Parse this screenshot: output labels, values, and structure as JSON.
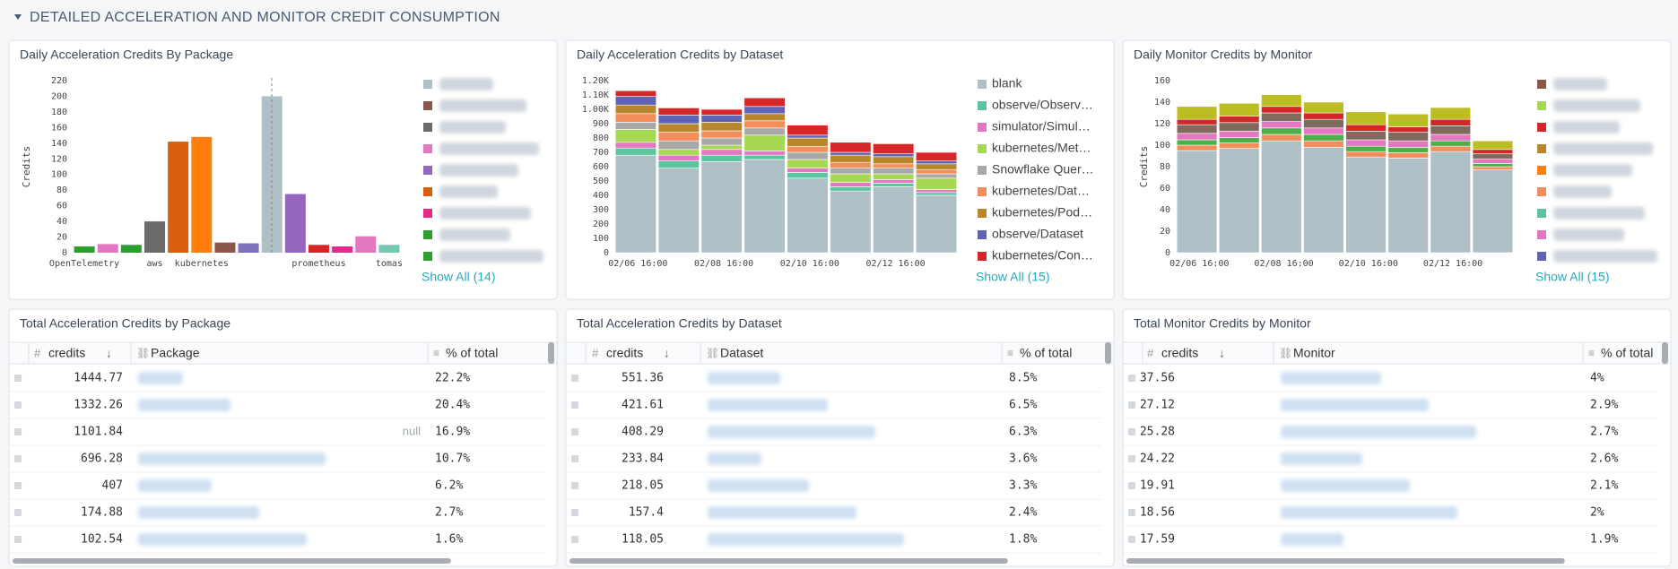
{
  "section_title": "DETAILED ACCELERATION AND MONITOR CREDIT CONSUMPTION",
  "chart_data": [
    {
      "type": "bar",
      "title": "Daily Acceleration Credits By Package",
      "y_label": "Credits",
      "categories": [
        "OpenTelemetry",
        null,
        null,
        "aws",
        null,
        "kubernetes",
        null,
        null,
        null,
        null,
        "prometheus",
        null,
        null,
        "tomas"
      ],
      "values": [
        8,
        11,
        10,
        40,
        142,
        148,
        13,
        12,
        200,
        75,
        10,
        8,
        21,
        10
      ],
      "colors": [
        "#2ca02c",
        "#e377c2",
        "#2ca02c",
        "#6b6b6b",
        "#d95f0e",
        "#ff7f0e",
        "#8c564b",
        "#7f6fbf",
        "#aebfc6",
        "#9467bd",
        "#d62728",
        "#e7298a",
        "#e377c2",
        "#76c7b0"
      ],
      "legend_colors": [
        "#aebfc6",
        "#8c564b",
        "#6b6b6b",
        "#e377c2",
        "#9467bd",
        "#d95f0e",
        "#e7298a",
        "#2ca02c",
        "#2ca02c"
      ],
      "ylim": [
        0,
        220
      ],
      "yticks": [
        0,
        20,
        40,
        60,
        80,
        100,
        120,
        140,
        160,
        180,
        200,
        220
      ],
      "grid": false,
      "show_all": "Show All (14)"
    },
    {
      "type": "stacked_bar",
      "title": "Daily Acceleration Credits by Dataset",
      "categories": [
        "02/06 16:00",
        null,
        "02/08 16:00",
        null,
        "02/10 16:00",
        null,
        "02/12 16:00",
        null
      ],
      "series": [
        {
          "name": "blank",
          "color": "#aebfc6",
          "values": [
            680,
            590,
            635,
            650,
            520,
            430,
            460,
            400
          ]
        },
        {
          "name": "observe/Observ…",
          "color": "#5cc5a0",
          "values": [
            50,
            50,
            45,
            30,
            40,
            30,
            25,
            20
          ]
        },
        {
          "name": "simulator/Simul…",
          "color": "#e377c2",
          "values": [
            40,
            40,
            40,
            30,
            30,
            30,
            25,
            20
          ]
        },
        {
          "name": "kubernetes/Met…",
          "color": "#a6d854",
          "values": [
            90,
            40,
            30,
            110,
            60,
            60,
            40,
            80
          ]
        },
        {
          "name": "Snowflake Quer…",
          "color": "#a8a8a8",
          "values": [
            50,
            60,
            50,
            50,
            50,
            40,
            40,
            30
          ]
        },
        {
          "name": "kubernetes/Dat…",
          "color": "#f28e5b",
          "values": [
            60,
            60,
            50,
            50,
            40,
            40,
            30,
            30
          ]
        },
        {
          "name": "kubernetes/Pod…",
          "color": "#b8862b",
          "values": [
            60,
            60,
            60,
            50,
            60,
            50,
            50,
            40
          ]
        },
        {
          "name": "observe/Dataset",
          "color": "#5e63b6",
          "values": [
            60,
            60,
            50,
            50,
            20,
            20,
            20,
            20
          ]
        },
        {
          "name": "kubernetes/Con…",
          "color": "#d62728",
          "values": [
            40,
            50,
            40,
            60,
            70,
            70,
            70,
            60
          ]
        }
      ],
      "ylim": [
        0,
        1200
      ],
      "yticks": [
        0,
        100,
        200,
        300,
        400,
        500,
        600,
        700,
        800,
        900,
        {
          "value": 1000,
          "label": "1.00K"
        },
        {
          "value": 1100,
          "label": "1.10K"
        },
        {
          "value": 1200,
          "label": "1.20K"
        }
      ],
      "grid": false,
      "show_all": "Show All (15)"
    },
    {
      "type": "stacked_bar",
      "title": "Daily Monitor Credits by Monitor",
      "y_label": "Credits",
      "categories": [
        "02/06 16:00",
        null,
        "02/08 16:00",
        null,
        "02/10 16:00",
        null,
        "02/12 16:00",
        null
      ],
      "series": [
        {
          "color": "#aebfc6",
          "values": [
            95,
            97,
            104,
            98,
            89,
            88,
            94,
            77
          ]
        },
        {
          "color": "#f28e5b",
          "values": [
            5,
            5,
            6,
            6,
            5,
            5,
            5,
            3
          ]
        },
        {
          "color": "#4daf4a",
          "values": [
            5,
            5,
            6,
            6,
            5,
            5,
            5,
            3
          ]
        },
        {
          "color": "#e377c2",
          "values": [
            6,
            6,
            6,
            6,
            6,
            6,
            6,
            4
          ]
        },
        {
          "color": "#7f6a5e",
          "values": [
            8,
            8,
            8,
            8,
            8,
            8,
            8,
            5
          ]
        },
        {
          "color": "#d62728",
          "values": [
            5,
            6,
            6,
            6,
            6,
            5,
            6,
            4
          ]
        },
        {
          "color": "#bcbd22",
          "values": [
            12,
            12,
            11,
            10,
            12,
            12,
            11,
            8
          ]
        }
      ],
      "legend_colors": [
        "#8c564b",
        "#a6d854",
        "#d62728",
        "#b8862b",
        "#ff7f0e",
        "#f28e5b",
        "#5cc5a0",
        "#e377c2",
        "#5e63b6"
      ],
      "ylim": [
        0,
        160
      ],
      "yticks": [
        0,
        20,
        40,
        60,
        80,
        100,
        120,
        140,
        160
      ],
      "grid": false,
      "show_all": "Show All (15)"
    }
  ],
  "tables": [
    {
      "title": "Total Acceleration Credits by Package",
      "columns": [
        "credits",
        "Package",
        "% of total"
      ],
      "rows": [
        [
          1444.77,
          null,
          "22.2%"
        ],
        [
          1332.26,
          null,
          "20.4%"
        ],
        [
          1101.84,
          "null",
          "16.9%"
        ],
        [
          696.28,
          null,
          "10.7%"
        ],
        [
          407,
          null,
          "6.2%"
        ],
        [
          174.88,
          null,
          "2.7%"
        ],
        [
          102.54,
          null,
          "1.6%"
        ]
      ]
    },
    {
      "title": "Total Acceleration Credits by Dataset",
      "columns": [
        "credits",
        "Dataset",
        "% of total"
      ],
      "rows": [
        [
          551.36,
          null,
          "8.5%"
        ],
        [
          421.61,
          null,
          "6.5%"
        ],
        [
          408.29,
          null,
          "6.3%"
        ],
        [
          233.84,
          null,
          "3.6%"
        ],
        [
          218.05,
          null,
          "3.3%"
        ],
        [
          157.4,
          null,
          "2.4%"
        ],
        [
          118.05,
          null,
          "1.8%"
        ]
      ]
    },
    {
      "title": "Total Monitor Credits by Monitor",
      "columns": [
        "credits",
        "Monitor",
        "% of total"
      ],
      "rows": [
        [
          37.56,
          null,
          "4%"
        ],
        [
          27.12,
          null,
          "2.9%"
        ],
        [
          25.28,
          null,
          "2.7%"
        ],
        [
          24.22,
          null,
          "2.6%"
        ],
        [
          19.91,
          null,
          "2.1%"
        ],
        [
          18.56,
          null,
          "2%"
        ],
        [
          17.59,
          null,
          "1.9%"
        ]
      ]
    }
  ]
}
